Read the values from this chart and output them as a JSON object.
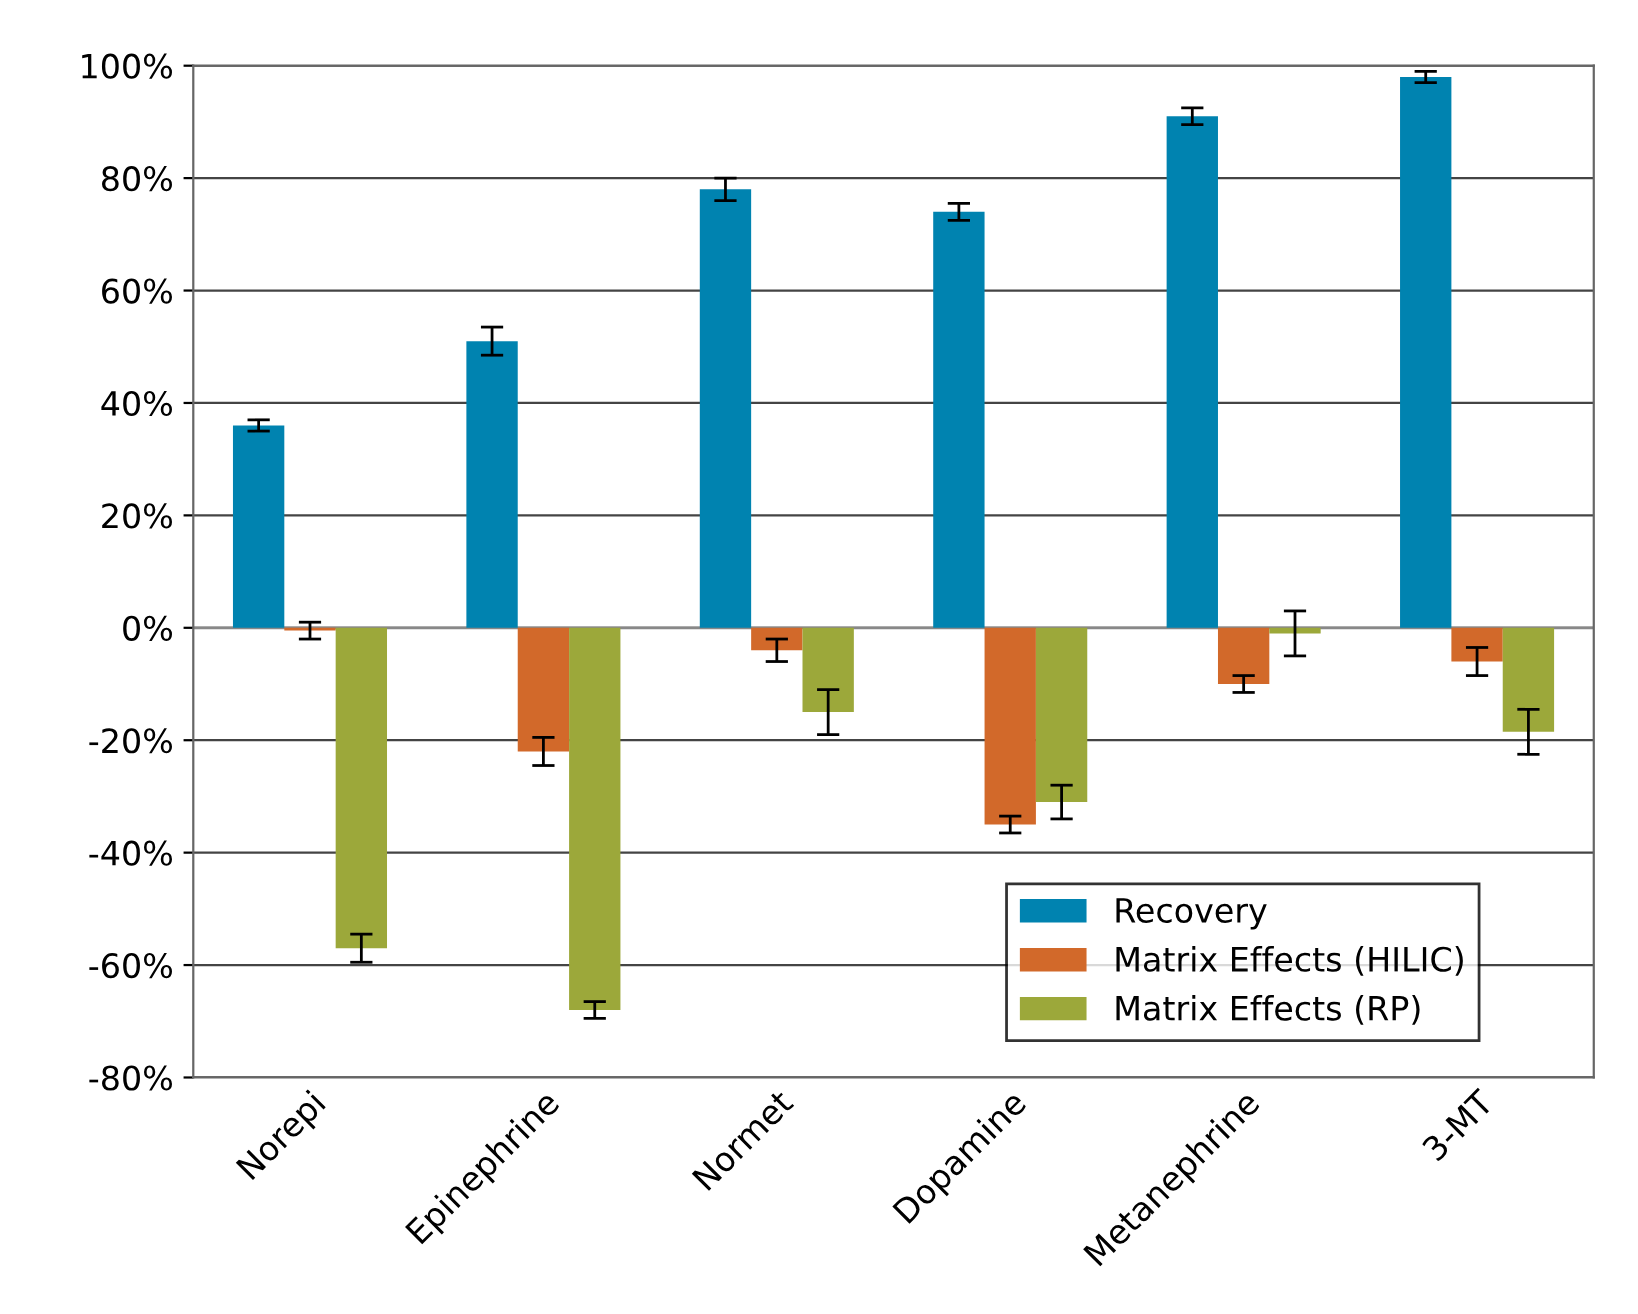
{
  "chart_data": {
    "type": "bar",
    "categories": [
      "Norepi",
      "Epinephrine",
      "Normet",
      "Dopamine",
      "Metanephrine",
      "3-MT"
    ],
    "series": [
      {
        "name": "Recovery",
        "color": "#0083b0",
        "values": [
          36,
          51,
          78,
          74,
          91,
          98
        ],
        "errors": [
          1,
          2.5,
          2,
          1.5,
          1.5,
          1
        ]
      },
      {
        "name": "Matrix Effects (HILIC)",
        "color": "#d2692a",
        "values": [
          -0.5,
          -22,
          -4,
          -35,
          -10,
          -6
        ],
        "errors": [
          1.5,
          2.5,
          2,
          1.5,
          1.5,
          2.5
        ]
      },
      {
        "name": "Matrix Effects (RP)",
        "color": "#9ca83a",
        "values": [
          -57,
          -68,
          -15,
          -31,
          -1,
          -18.5
        ],
        "errors": [
          2.5,
          1.5,
          4,
          3,
          4,
          4
        ]
      }
    ],
    "ylim": [
      -80,
      100
    ],
    "yticks": [
      {
        "value": -80,
        "label": "-80%"
      },
      {
        "value": -60,
        "label": "-60%"
      },
      {
        "value": -40,
        "label": "-40%"
      },
      {
        "value": -20,
        "label": "-20%"
      },
      {
        "value": 0,
        "label": "0%"
      },
      {
        "value": 20,
        "label": "20%"
      },
      {
        "value": 40,
        "label": "40%"
      },
      {
        "value": 60,
        "label": "60%"
      },
      {
        "value": 80,
        "label": "80%"
      },
      {
        "value": 100,
        "label": "100%"
      }
    ],
    "grid": "y",
    "legend": "bottom right"
  }
}
